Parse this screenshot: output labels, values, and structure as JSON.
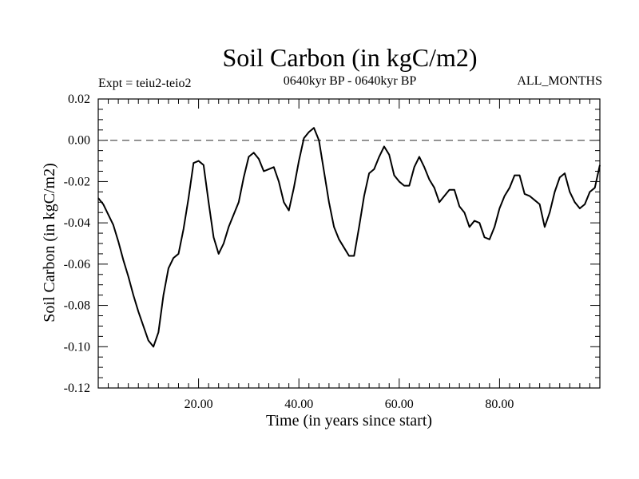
{
  "header": {
    "title": "Soil Carbon (in kgC/m2)",
    "expt": "Expt = teiu2-teio2",
    "period": "0640kyr BP - 0640kyr BP",
    "months": "ALL_MONTHS"
  },
  "chart_data": {
    "type": "line",
    "title": "Soil Carbon (in kgC/m2)",
    "xlabel": "Time (in years since start)",
    "ylabel": "Soil Carbon (in kgC/m2)",
    "xlim": [
      0,
      100
    ],
    "ylim": [
      -0.12,
      0.02
    ],
    "xticks": [
      20,
      40,
      60,
      80
    ],
    "xtick_labels": [
      "20.00",
      "40.00",
      "60.00",
      "80.00"
    ],
    "yticks": [
      0.02,
      0.0,
      -0.02,
      -0.04,
      -0.06,
      -0.08,
      -0.1,
      -0.12
    ],
    "ytick_labels": [
      "0.02",
      "0.00",
      "-0.02",
      "-0.04",
      "-0.06",
      "-0.08",
      "-0.10",
      "-0.12"
    ],
    "reference_line": {
      "y": 0.0,
      "style": "dashed"
    },
    "series": [
      {
        "name": "teiu2-teio2",
        "x": [
          0,
          1,
          2,
          3,
          4,
          5,
          6,
          7,
          8,
          9,
          10,
          11,
          12,
          13,
          14,
          15,
          16,
          17,
          18,
          19,
          20,
          21,
          22,
          23,
          24,
          25,
          26,
          27,
          28,
          29,
          30,
          31,
          32,
          33,
          34,
          35,
          36,
          37,
          38,
          39,
          40,
          41,
          42,
          43,
          44,
          45,
          46,
          47,
          48,
          49,
          50,
          51,
          52,
          53,
          54,
          55,
          56,
          57,
          58,
          59,
          60,
          61,
          62,
          63,
          64,
          65,
          66,
          67,
          68,
          69,
          70,
          71,
          72,
          73,
          74,
          75,
          76,
          77,
          78,
          79,
          80,
          81,
          82,
          83,
          84,
          85,
          86,
          87,
          88,
          89,
          90,
          91,
          92,
          93,
          94,
          95,
          96,
          97,
          98,
          99,
          100
        ],
        "y": [
          -0.028,
          -0.031,
          -0.036,
          -0.041,
          -0.049,
          -0.058,
          -0.066,
          -0.075,
          -0.083,
          -0.09,
          -0.097,
          -0.1,
          -0.093,
          -0.075,
          -0.062,
          -0.057,
          -0.055,
          -0.043,
          -0.028,
          -0.011,
          -0.01,
          -0.012,
          -0.03,
          -0.047,
          -0.055,
          -0.05,
          -0.042,
          -0.036,
          -0.03,
          -0.018,
          -0.008,
          -0.006,
          -0.009,
          -0.015,
          -0.014,
          -0.013,
          -0.02,
          -0.03,
          -0.034,
          -0.023,
          -0.01,
          0.001,
          0.004,
          0.006,
          0.0,
          -0.015,
          -0.03,
          -0.042,
          -0.048,
          -0.052,
          -0.056,
          -0.056,
          -0.042,
          -0.027,
          -0.016,
          -0.014,
          -0.008,
          -0.003,
          -0.007,
          -0.017,
          -0.02,
          -0.022,
          -0.022,
          -0.013,
          -0.008,
          -0.013,
          -0.019,
          -0.023,
          -0.03,
          -0.027,
          -0.024,
          -0.024,
          -0.032,
          -0.035,
          -0.042,
          -0.039,
          -0.04,
          -0.047,
          -0.048,
          -0.042,
          -0.033,
          -0.027,
          -0.023,
          -0.017,
          -0.017,
          -0.026,
          -0.027,
          -0.029,
          -0.031,
          -0.042,
          -0.035,
          -0.025,
          -0.018,
          -0.016,
          -0.025,
          -0.03,
          -0.033,
          -0.031,
          -0.025,
          -0.023,
          -0.012
        ]
      }
    ]
  }
}
